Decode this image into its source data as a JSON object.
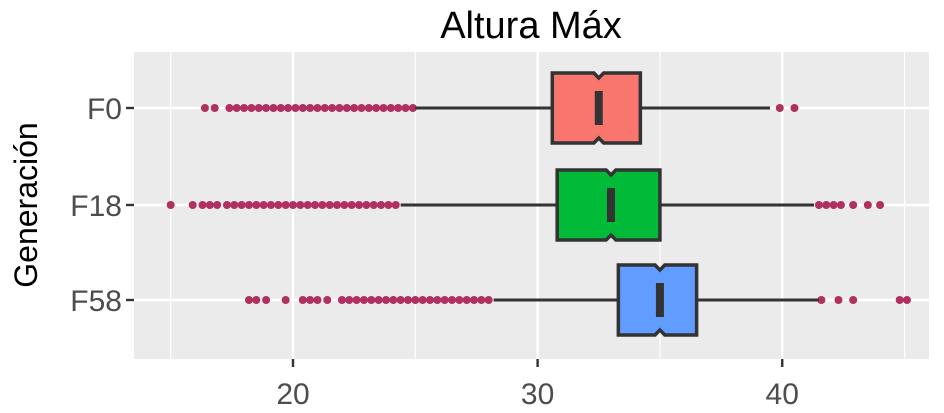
{
  "chart_data": {
    "type": "boxplot",
    "orientation": "horizontal",
    "notched": true,
    "title": "Altura Máx",
    "xlabel": "",
    "ylabel": "Generación",
    "xlim": [
      13.5,
      46
    ],
    "xticks": [
      20,
      30,
      40
    ],
    "xminor": [
      15,
      25,
      35,
      45
    ],
    "grid": true,
    "panel_background": "#ebebeb",
    "outlier_color": "#b03060",
    "box_stroke": "#333333",
    "categories": [
      "F0",
      "F18",
      "F58"
    ],
    "series": [
      {
        "name": "F0",
        "color": "#f8766d",
        "whisker_low": 25.0,
        "q1": 30.6,
        "median": 32.5,
        "q3": 34.2,
        "whisker_high": 39.5,
        "notch_low": 32.3,
        "notch_high": 32.7,
        "outliers": [
          16.4,
          16.8,
          17.4,
          17.7,
          18.0,
          18.3,
          18.6,
          18.9,
          19.2,
          19.5,
          19.8,
          20.1,
          20.4,
          20.7,
          21.0,
          21.3,
          21.6,
          21.9,
          22.2,
          22.5,
          22.8,
          23.1,
          23.4,
          23.7,
          24.0,
          24.3,
          24.6,
          24.9,
          39.9,
          40.5
        ]
      },
      {
        "name": "F18",
        "color": "#00ba38",
        "whisker_low": 24.4,
        "q1": 30.8,
        "median": 33.0,
        "q3": 35.0,
        "whisker_high": 41.3,
        "notch_low": 32.8,
        "notch_high": 33.2,
        "outliers": [
          15.0,
          15.9,
          16.3,
          16.6,
          16.9,
          17.3,
          17.6,
          17.9,
          18.2,
          18.5,
          18.8,
          19.1,
          19.4,
          19.7,
          20.0,
          20.3,
          20.6,
          20.9,
          21.2,
          21.5,
          21.8,
          22.1,
          22.4,
          22.7,
          23.0,
          23.3,
          23.6,
          23.9,
          24.2,
          41.5,
          41.8,
          42.1,
          42.4,
          42.9,
          43.5,
          44.0
        ]
      },
      {
        "name": "F58",
        "color": "#619cff",
        "whisker_low": 28.2,
        "q1": 33.3,
        "median": 35.0,
        "q3": 36.5,
        "whisker_high": 41.5,
        "notch_low": 34.8,
        "notch_high": 35.2,
        "outliers": [
          18.2,
          18.5,
          18.9,
          19.7,
          20.4,
          20.7,
          21.0,
          21.4,
          22.0,
          22.3,
          22.6,
          22.9,
          23.2,
          23.5,
          23.8,
          24.1,
          24.4,
          24.7,
          25.0,
          25.3,
          25.6,
          25.9,
          26.2,
          26.5,
          26.8,
          27.1,
          27.4,
          27.7,
          28.0,
          41.6,
          42.3,
          42.9,
          44.8,
          45.1
        ]
      }
    ]
  }
}
